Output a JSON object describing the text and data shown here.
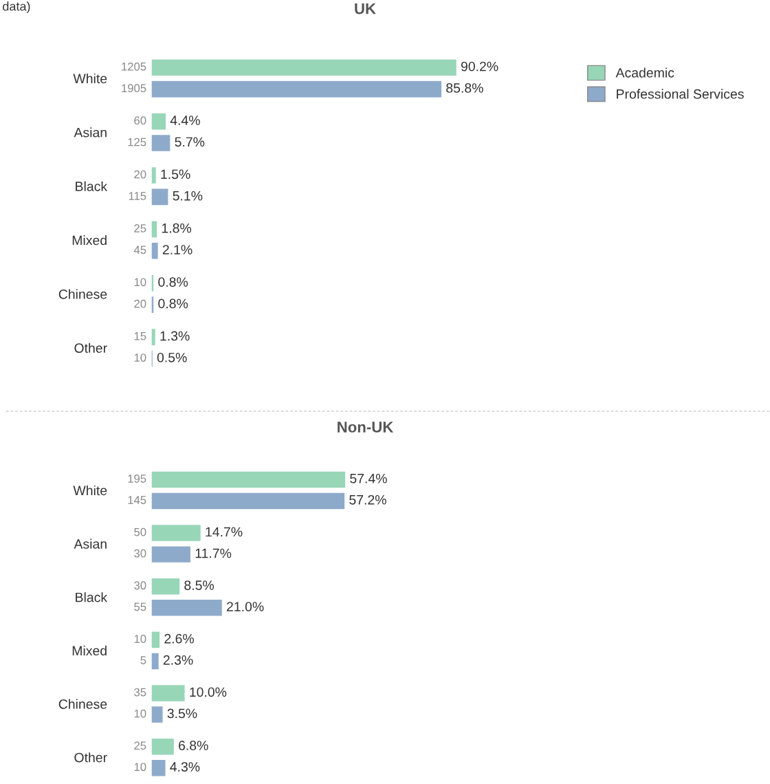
{
  "chart_data": [
    {
      "type": "bar",
      "orientation": "horizontal",
      "title": "UK",
      "categories": [
        "White",
        "Asian",
        "Black",
        "Mixed",
        "Chinese",
        "Other"
      ],
      "legend": "top right",
      "series": [
        {
          "name": "Academic",
          "color": "#98d6b8",
          "values": [
            90.2,
            4.4,
            1.5,
            1.8,
            0.8,
            1.3
          ],
          "value_labels": [
            "90.2%",
            "4.4%",
            "1.5%",
            "1.8%",
            "0.8%",
            "1.3%"
          ]
        },
        {
          "name": "Professional Services",
          "color": "#8eaacb",
          "values": [
            85.8,
            5.7,
            5.1,
            2.1,
            0.8,
            0.5
          ],
          "value_labels": [
            "85.8%",
            "5.7%",
            "5.1%",
            "2.1%",
            "0.8%",
            "0.5%"
          ]
        }
      ],
      "annotations": [
        "1205",
        "1905",
        "60",
        "125",
        "20",
        "115",
        "25",
        "45",
        "10",
        "20",
        "15",
        "10",
        "data)"
      ]
    },
    {
      "type": "bar",
      "orientation": "horizontal",
      "title": "Non-UK",
      "categories": [
        "White",
        "Asian",
        "Black",
        "Mixed",
        "Chinese",
        "Other"
      ],
      "series": [
        {
          "color": "#98d6b8",
          "values": [
            57.4,
            14.7,
            8.5,
            2.6,
            10.0,
            6.8
          ],
          "value_labels": [
            "57.4%",
            "14.7%",
            "8.5%",
            "2.6%",
            "10.0%",
            "6.8%"
          ]
        },
        {
          "color": "#8eaacb",
          "values": [
            57.2,
            11.7,
            21.0,
            2.3,
            3.5,
            4.3
          ],
          "value_labels": [
            "57.2%",
            "11.7%",
            "21.0%",
            "2.3%",
            "3.5%",
            "4.3%"
          ]
        }
      ],
      "annotations": [
        "195",
        "145",
        "50",
        "30",
        "30",
        "55",
        "10",
        "5",
        "35",
        "10",
        "25",
        "10"
      ]
    }
  ]
}
